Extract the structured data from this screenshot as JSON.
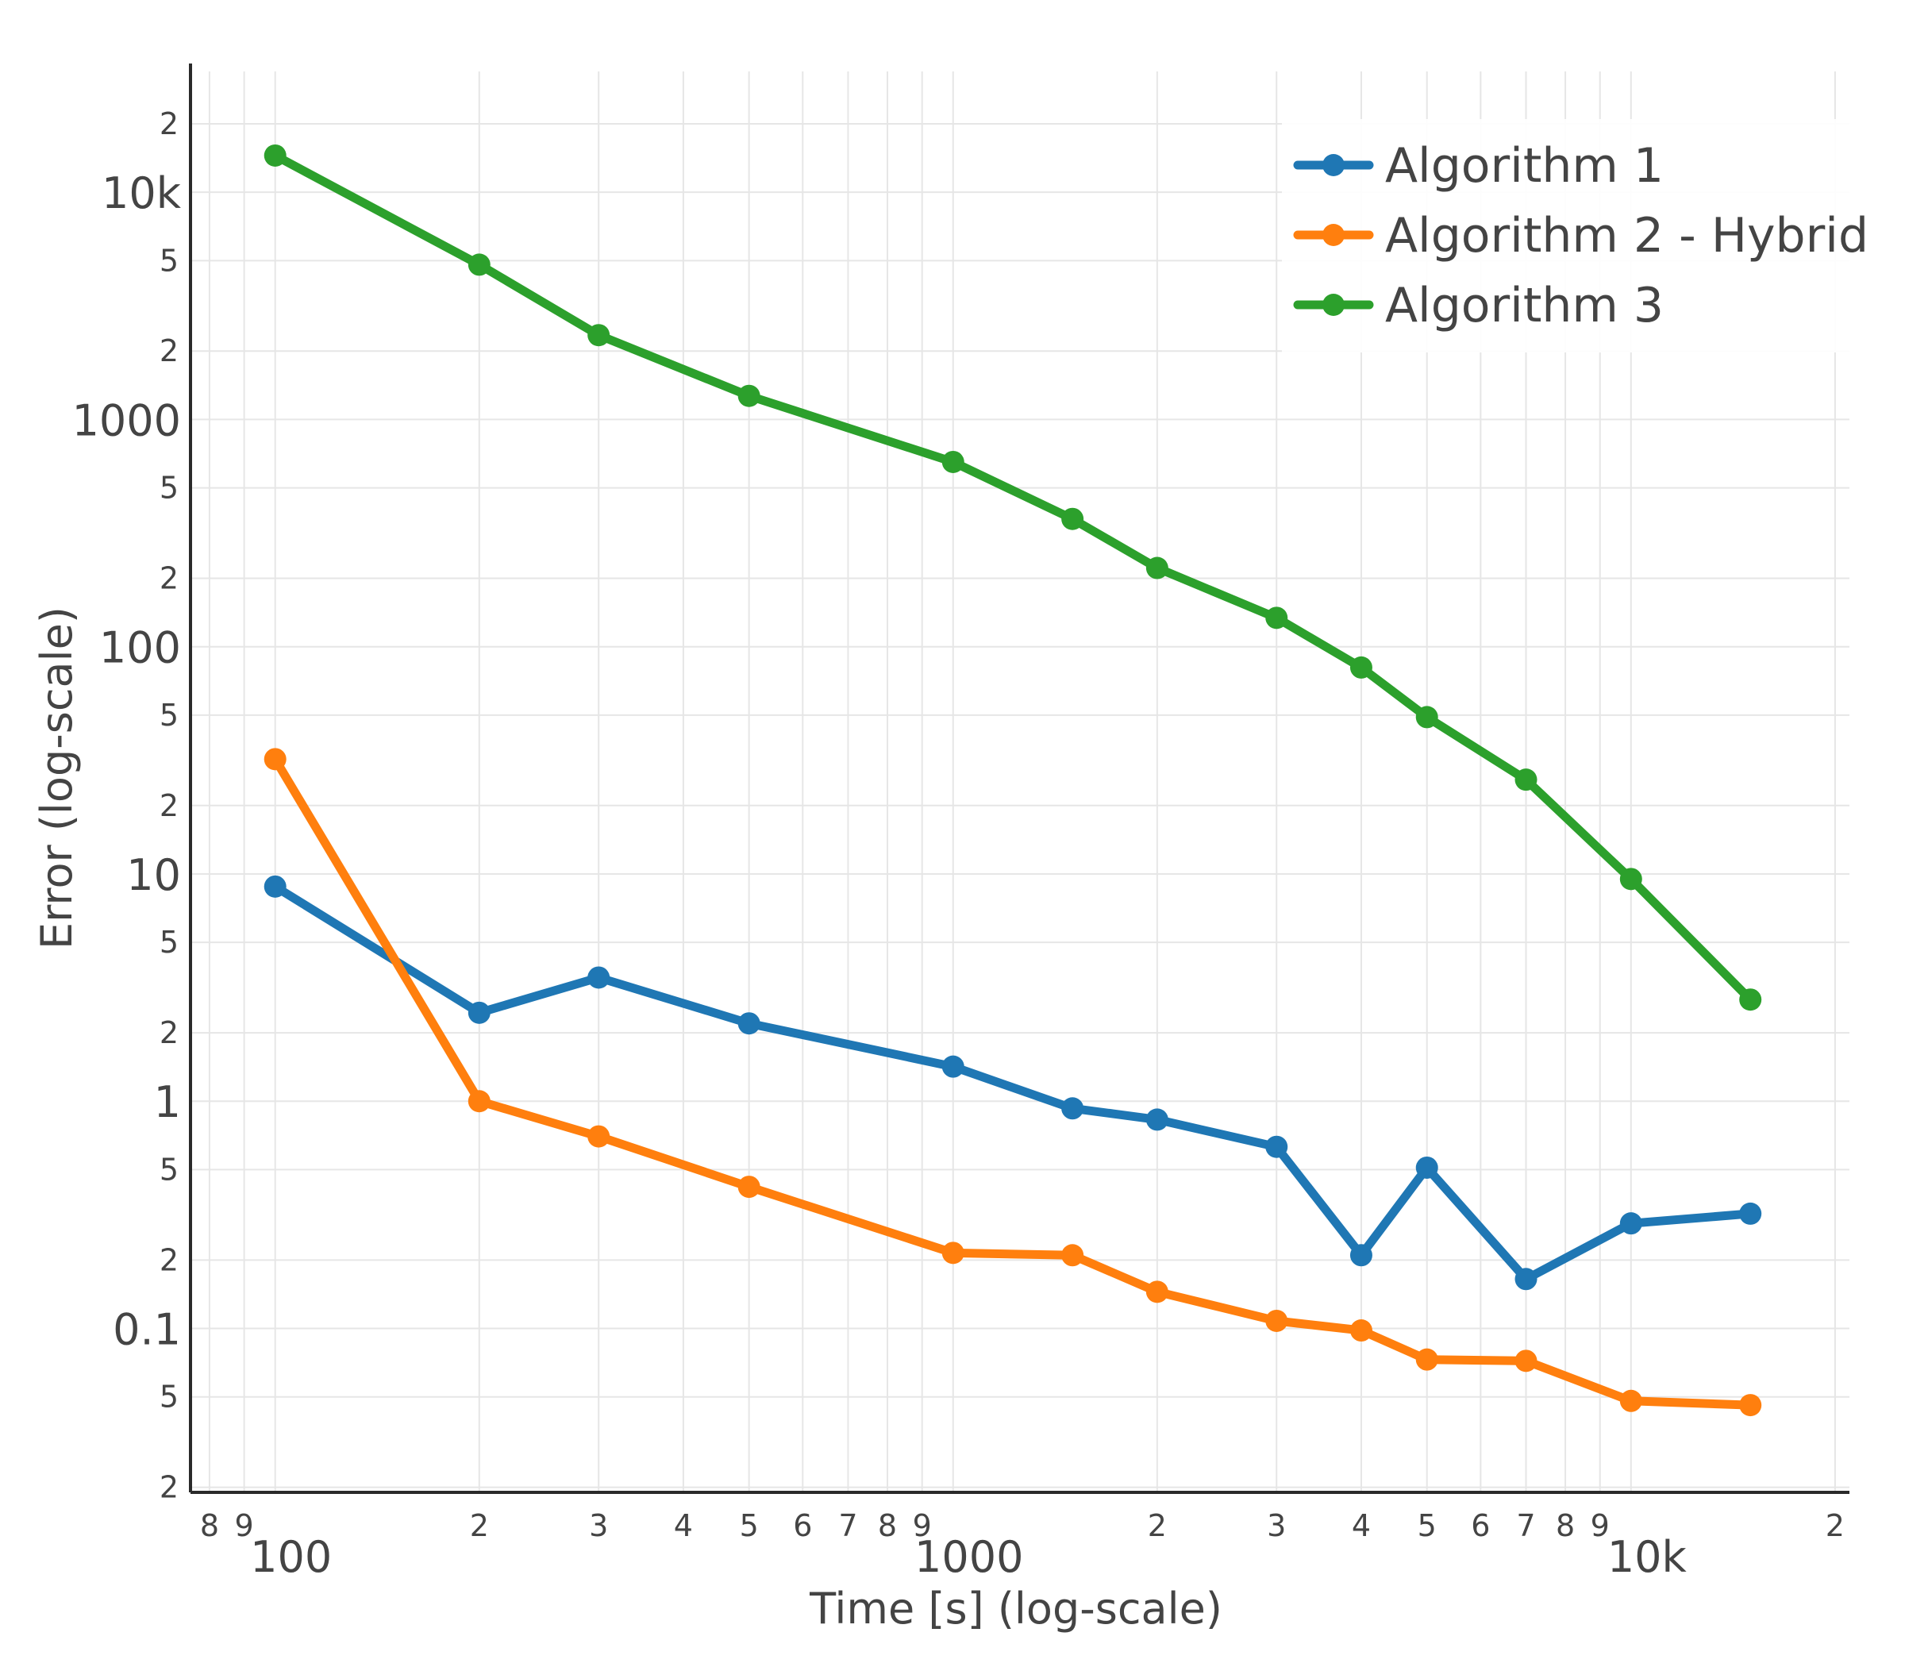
{
  "chart_data": {
    "type": "line",
    "title": "",
    "xlabel": "Time [s] (log-scale)",
    "ylabel": "Error (log-scale)",
    "xscale": "log",
    "yscale": "log",
    "xlim": [
      75,
      21000
    ],
    "ylim": [
      0.019,
      34000
    ],
    "grid": true,
    "legend_position": "top-right",
    "x_major_ticks": [
      {
        "value": 100,
        "label": "100"
      },
      {
        "value": 1000,
        "label": "1000"
      },
      {
        "value": 10000,
        "label": "10k"
      }
    ],
    "x_minor_ticks": [
      {
        "value": 80,
        "label": "8"
      },
      {
        "value": 90,
        "label": "9"
      },
      {
        "value": 200,
        "label": "2"
      },
      {
        "value": 300,
        "label": "3"
      },
      {
        "value": 400,
        "label": "4"
      },
      {
        "value": 500,
        "label": "5"
      },
      {
        "value": 600,
        "label": "6"
      },
      {
        "value": 700,
        "label": "7"
      },
      {
        "value": 800,
        "label": "8"
      },
      {
        "value": 900,
        "label": "9"
      },
      {
        "value": 2000,
        "label": "2"
      },
      {
        "value": 3000,
        "label": "3"
      },
      {
        "value": 4000,
        "label": "4"
      },
      {
        "value": 5000,
        "label": "5"
      },
      {
        "value": 6000,
        "label": "6"
      },
      {
        "value": 7000,
        "label": "7"
      },
      {
        "value": 8000,
        "label": "8"
      },
      {
        "value": 9000,
        "label": "9"
      },
      {
        "value": 20000,
        "label": "2"
      }
    ],
    "y_major_ticks": [
      {
        "value": 0.1,
        "label": "0.1"
      },
      {
        "value": 1,
        "label": "1"
      },
      {
        "value": 10,
        "label": "10"
      },
      {
        "value": 100,
        "label": "100"
      },
      {
        "value": 1000,
        "label": "1000"
      },
      {
        "value": 10000,
        "label": "10k"
      }
    ],
    "y_minor_ticks": [
      {
        "value": 0.02,
        "label": "2"
      },
      {
        "value": 0.05,
        "label": "5"
      },
      {
        "value": 0.2,
        "label": "2"
      },
      {
        "value": 0.5,
        "label": "5"
      },
      {
        "value": 2,
        "label": "2"
      },
      {
        "value": 5,
        "label": "5"
      },
      {
        "value": 20,
        "label": "2"
      },
      {
        "value": 50,
        "label": "5"
      },
      {
        "value": 200,
        "label": "2"
      },
      {
        "value": 500,
        "label": "5"
      },
      {
        "value": 2000,
        "label": "2"
      },
      {
        "value": 5000,
        "label": "5"
      },
      {
        "value": 20000,
        "label": "2"
      }
    ],
    "x": [
      100,
      200,
      300,
      500,
      1000,
      1500,
      2000,
      3000,
      4000,
      5000,
      7000,
      10000,
      15000
    ],
    "series": [
      {
        "name": "Algorithm 1",
        "color": "#1f77b4",
        "values": [
          8.8,
          2.45,
          3.5,
          2.2,
          1.42,
          0.93,
          0.83,
          0.63,
          0.21,
          0.51,
          0.165,
          0.29,
          0.32
        ]
      },
      {
        "name": "Algorithm 2 - Hybrid",
        "color": "#ff7f0e",
        "values": [
          32,
          1.0,
          0.7,
          0.42,
          0.215,
          0.21,
          0.145,
          0.108,
          0.098,
          0.073,
          0.072,
          0.048,
          0.046
        ]
      },
      {
        "name": "Algorithm 3",
        "color": "#2ca02c",
        "values": [
          14500,
          4800,
          2350,
          1270,
          650,
          365,
          222,
          134,
          81,
          49,
          26,
          9.5,
          2.8
        ]
      }
    ]
  }
}
